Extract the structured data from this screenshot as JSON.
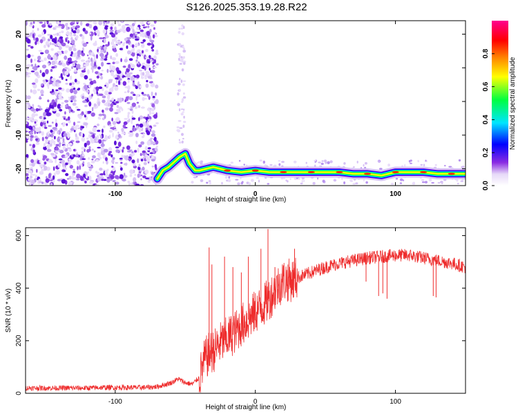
{
  "title": "S126.2025.353.19.28.R22",
  "chart_data": [
    {
      "type": "heatmap",
      "xlabel": "Height of straight line (km)",
      "ylabel": "Frequency (Hz)",
      "xlim": [
        -164,
        150
      ],
      "ylim": [
        -25,
        24
      ],
      "xticks": [
        -100,
        0,
        100
      ],
      "yticks": [
        -20,
        -10,
        0,
        10,
        20
      ],
      "grid": false,
      "colorbar": {
        "label": "Normalized spectral amplitude",
        "range": [
          0.0,
          1.0
        ],
        "ticks": [
          0.0,
          0.2,
          0.4,
          0.6,
          0.8
        ],
        "tick_labels": [
          "0.0",
          "0.2",
          "0.4",
          "0.6",
          "0.8"
        ],
        "colormap": [
          "#ffffff",
          "#e6d8f8",
          "#8a2be2",
          "#0000ff",
          "#00e5ff",
          "#00ff40",
          "#ffff00",
          "#ff8000",
          "#ff0000",
          "#ff0090"
        ]
      },
      "carrier_track": {
        "x": [
          -70,
          -66,
          -62,
          -58,
          -54,
          -50,
          -47,
          -43,
          -40,
          -30,
          -20,
          -10,
          0,
          10,
          20,
          30,
          40,
          50,
          60,
          70,
          80,
          90,
          100,
          110,
          120,
          130,
          140,
          150
        ],
        "y": [
          -23,
          -20.5,
          -19.5,
          -18,
          -16.5,
          -15.5,
          -18.5,
          -20.5,
          -20.5,
          -19.5,
          -20.5,
          -21,
          -20.5,
          -21,
          -21,
          -21,
          -21,
          -21,
          -21,
          -21.5,
          -21.5,
          -22,
          -21,
          -21,
          -21,
          -21.5,
          -21.5,
          -21.5
        ]
      },
      "noise_region_x": [
        -164,
        -70
      ]
    },
    {
      "type": "line",
      "xlabel": "Height of straight line (km)",
      "ylabel": "SNR (10 * v/v)",
      "xlim": [
        -164,
        150
      ],
      "ylim": [
        0,
        630
      ],
      "xticks": [
        -100,
        0,
        100
      ],
      "yticks": [
        0,
        200,
        400,
        600
      ],
      "grid": false,
      "series": [
        {
          "color": "#ee2c2c",
          "x": [
            -164,
            -150,
            -140,
            -130,
            -120,
            -110,
            -100,
            -90,
            -80,
            -70,
            -60,
            -55,
            -50,
            -45,
            -40,
            -36,
            -33,
            -30,
            -25,
            -20,
            -15,
            -10,
            -5,
            0,
            5,
            10,
            15,
            20,
            25,
            30,
            35,
            40,
            50,
            60,
            70,
            80,
            90,
            100,
            110,
            120,
            130,
            140,
            150
          ],
          "y": [
            20,
            20,
            20,
            20,
            20,
            22,
            22,
            22,
            22,
            25,
            40,
            55,
            40,
            35,
            60,
            130,
            150,
            160,
            190,
            210,
            230,
            260,
            280,
            310,
            330,
            360,
            400,
            430,
            430,
            440,
            450,
            460,
            480,
            495,
            505,
            515,
            520,
            525,
            525,
            515,
            505,
            495,
            480
          ]
        }
      ],
      "annotation_spikes": {
        "x": [
          -33,
          -31,
          -22,
          -16,
          -10,
          -5,
          4,
          9,
          14,
          28,
          79,
          88,
          91,
          94,
          127,
          129
        ],
        "y": [
          555,
          490,
          520,
          480,
          460,
          520,
          550,
          625,
          480,
          550,
          425,
          370,
          380,
          360,
          370,
          365
        ]
      }
    }
  ]
}
